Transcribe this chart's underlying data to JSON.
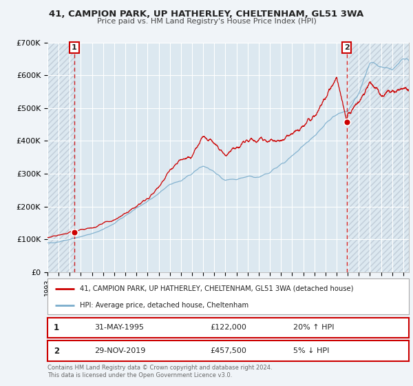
{
  "title": "41, CAMPION PARK, UP HATHERLEY, CHELTENHAM, GL51 3WA",
  "subtitle": "Price paid vs. HM Land Registry's House Price Index (HPI)",
  "ylim": [
    0,
    700000
  ],
  "yticks": [
    0,
    100000,
    200000,
    300000,
    400000,
    500000,
    600000,
    700000
  ],
  "ytick_labels": [
    "£0",
    "£100K",
    "£200K",
    "£300K",
    "£400K",
    "£500K",
    "£600K",
    "£700K"
  ],
  "xlim_start": 1993.0,
  "xlim_end": 2025.5,
  "red_color": "#cc0000",
  "blue_color": "#7aadcc",
  "bg_color": "#f0f4f8",
  "plot_bg_color": "#dce8f0",
  "grid_color": "#ffffff",
  "hatch_color": "#c0ccd8",
  "marker1_date": 1995.41,
  "marker1_value": 122000,
  "marker2_date": 2019.91,
  "marker2_value": 457500,
  "legend_label_red": "41, CAMPION PARK, UP HATHERLEY, CHELTENHAM, GL51 3WA (detached house)",
  "legend_label_blue": "HPI: Average price, detached house, Cheltenham",
  "footnote": "Contains HM Land Registry data © Crown copyright and database right 2024.\nThis data is licensed under the Open Government Licence v3.0.",
  "table_row1_num": "1",
  "table_row1_date": "31-MAY-1995",
  "table_row1_price": "£122,000",
  "table_row1_hpi": "20% ↑ HPI",
  "table_row2_num": "2",
  "table_row2_date": "29-NOV-2019",
  "table_row2_price": "£457,500",
  "table_row2_hpi": "5% ↓ HPI"
}
